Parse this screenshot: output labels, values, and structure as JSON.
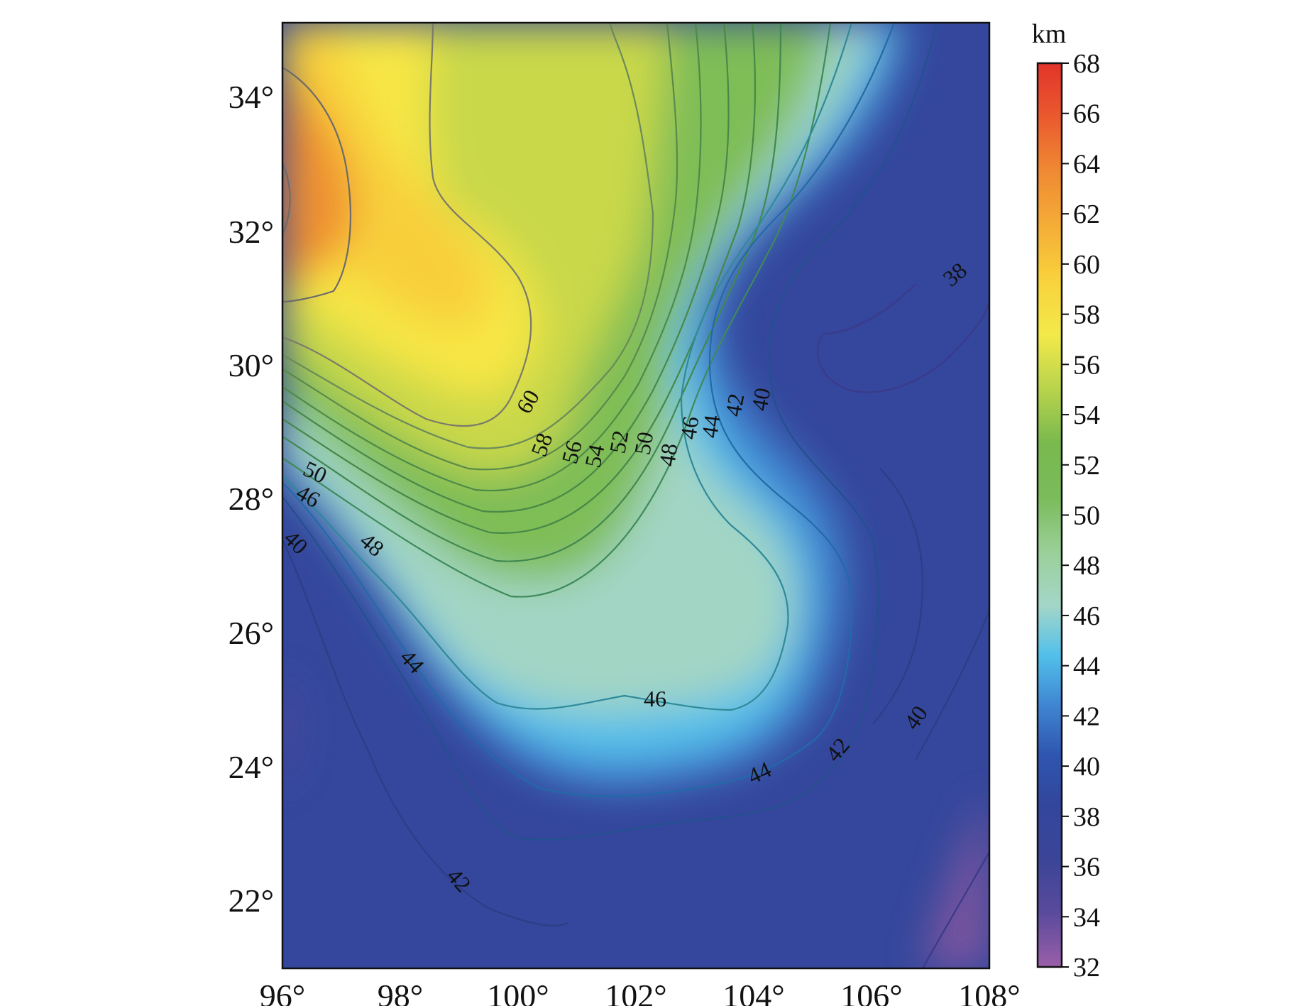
{
  "map": {
    "lon_ticks": [
      "96°",
      "98°",
      "100°",
      "102°",
      "104°",
      "106°",
      "108°"
    ],
    "lat_ticks": [
      "22°",
      "24°",
      "26°",
      "28°",
      "30°",
      "32°",
      "34°"
    ],
    "lon_range": [
      96,
      108
    ],
    "lat_range": [
      21,
      35
    ]
  },
  "colorbar": {
    "unit": "km",
    "range": [
      32,
      68
    ],
    "ticks": [
      "68",
      "66",
      "64",
      "62",
      "60",
      "58",
      "56",
      "54",
      "52",
      "50",
      "48",
      "46",
      "44",
      "42",
      "40",
      "38",
      "36",
      "34",
      "32"
    ],
    "colors": [
      "#8e5aa6",
      "#5a4a9c",
      "#3b4694",
      "#34469a",
      "#2f4fa8",
      "#3367c2",
      "#3f94dd",
      "#56c0ea",
      "#8cd3cf",
      "#9fd3b5",
      "#86c27b",
      "#72b64e",
      "#8bc34e",
      "#c7d64b",
      "#eee648",
      "#f9e640",
      "#f8c33a",
      "#f29a35",
      "#ef6c30",
      "#e23a2b"
    ]
  },
  "contours": {
    "labels": [
      "60",
      "58",
      "56",
      "54",
      "52",
      "50",
      "48",
      "46",
      "44",
      "42",
      "40",
      "38",
      "50",
      "46",
      "40",
      "48",
      "44",
      "46",
      "44",
      "42",
      "40",
      "42"
    ]
  }
}
